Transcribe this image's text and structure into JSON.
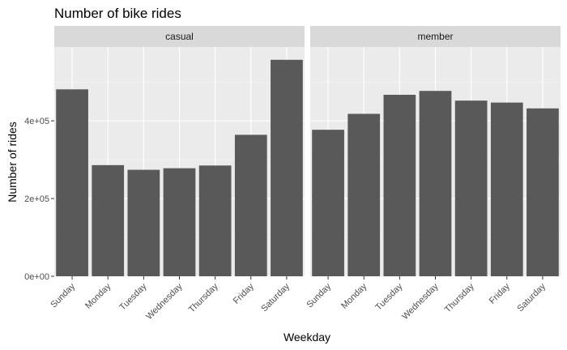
{
  "chart_data": {
    "type": "bar",
    "title": "Number of bike rides",
    "xlabel": "Weekday",
    "ylabel": "Number of rides",
    "categories": [
      "Sunday",
      "Monday",
      "Tuesday",
      "Wednesday",
      "Thursday",
      "Friday",
      "Saturday"
    ],
    "ylim": [
      0,
      590000
    ],
    "yticks": [
      0,
      200000,
      400000
    ],
    "ytick_labels": [
      "0e+00",
      "2e+05",
      "4e+05"
    ],
    "grid": true,
    "bar_color": "#595959",
    "panel_background": "#ebebeb",
    "strip_background": "#d9d9d9",
    "panels": [
      {
        "label": "casual",
        "values": [
          481000,
          286000,
          274000,
          278000,
          285000,
          364000,
          557000
        ]
      },
      {
        "label": "member",
        "values": [
          377000,
          418000,
          467000,
          477000,
          452000,
          447000,
          432000
        ]
      }
    ]
  }
}
